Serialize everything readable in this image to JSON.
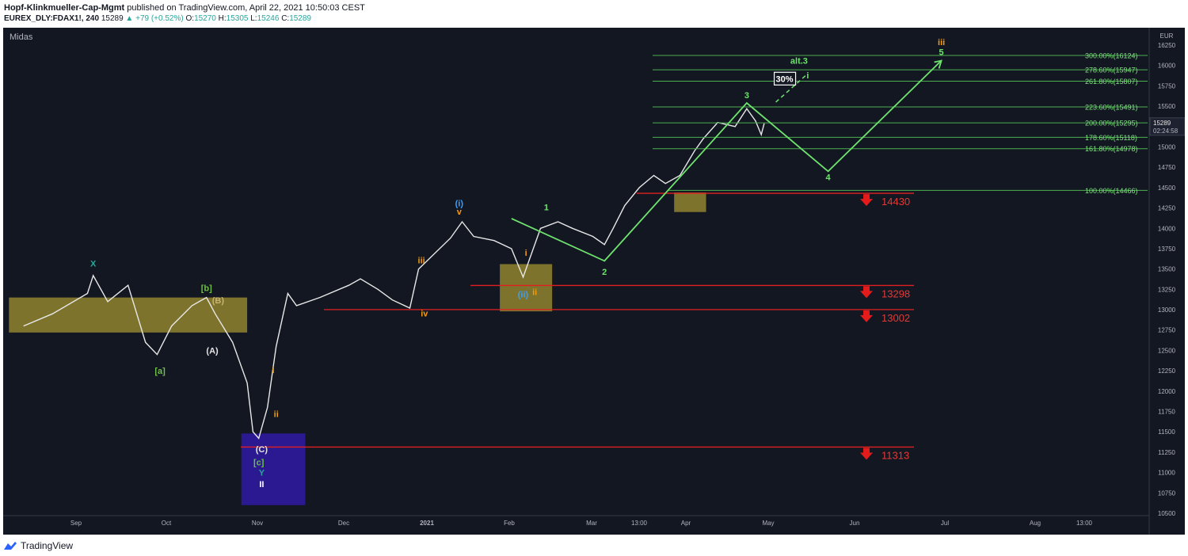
{
  "header": {
    "author": "Hopf-Klinkmueller-Cap-Mgmt",
    "published": "published on TradingView.com, April 22, 2021 10:50:03 CEST",
    "symbol": "EUREX_DLY:FDAX1!, 240",
    "last": "15289",
    "change": "+79 (+0.52%)",
    "o_label": "O:",
    "o_value": "15270",
    "h_label": "H:",
    "h_value": "15305",
    "l_label": "L:",
    "l_value": "15246",
    "c_label": "C:",
    "c_value": "15289"
  },
  "footer": {
    "brand": "TradingView"
  },
  "chart_data": {
    "type": "line",
    "indicator_label": "Midas",
    "currency": "EUR",
    "y_range": [
      10500,
      16250
    ],
    "y_ticks": [
      "16250",
      "16000",
      "15750",
      "15500",
      "15250",
      "15000",
      "14750",
      "14500",
      "14250",
      "14000",
      "13750",
      "13500",
      "13250",
      "13000",
      "12750",
      "12500",
      "12250",
      "12000",
      "11750",
      "11500",
      "11250",
      "11000",
      "10750",
      "10500"
    ],
    "x_ticks": [
      "Sep",
      "Oct",
      "Nov",
      "Dec",
      "2021",
      "Feb",
      "Mar",
      "13:00",
      "Apr",
      "May",
      "Jun",
      "Jul",
      "Aug",
      "13:00"
    ],
    "price_tag": {
      "value": "15289",
      "countdown": "02:24:58"
    },
    "series_price": [
      [
        "2020-08-10",
        12800
      ],
      [
        "2020-08-20",
        12950
      ],
      [
        "2020-09-01",
        13200
      ],
      [
        "2020-09-03",
        13420
      ],
      [
        "2020-09-08",
        13100
      ],
      [
        "2020-09-15",
        13300
      ],
      [
        "2020-09-21",
        12600
      ],
      [
        "2020-09-25",
        12450
      ],
      [
        "2020-09-30",
        12800
      ],
      [
        "2020-10-07",
        13050
      ],
      [
        "2020-10-12",
        13150
      ],
      [
        "2020-10-15",
        12950
      ],
      [
        "2020-10-21",
        12600
      ],
      [
        "2020-10-26",
        12100
      ],
      [
        "2020-10-28",
        11500
      ],
      [
        "2020-10-30",
        11420
      ],
      [
        "2020-11-02",
        11800
      ],
      [
        "2020-11-05",
        12550
      ],
      [
        "2020-11-09",
        13200
      ],
      [
        "2020-11-12",
        13050
      ],
      [
        "2020-11-20",
        13150
      ],
      [
        "2020-11-30",
        13300
      ],
      [
        "2020-12-04",
        13380
      ],
      [
        "2020-12-10",
        13250
      ],
      [
        "2020-12-15",
        13120
      ],
      [
        "2020-12-21",
        13020
      ],
      [
        "2020-12-24",
        13500
      ],
      [
        "2021-01-04",
        13880
      ],
      [
        "2021-01-08",
        14080
      ],
      [
        "2021-01-12",
        13900
      ],
      [
        "2021-01-19",
        13850
      ],
      [
        "2021-01-25",
        13750
      ],
      [
        "2021-01-29",
        13400
      ],
      [
        "2021-02-04",
        14000
      ],
      [
        "2021-02-10",
        14080
      ],
      [
        "2021-02-15",
        14000
      ],
      [
        "2021-02-22",
        13900
      ],
      [
        "2021-02-26",
        13800
      ],
      [
        "2021-03-01",
        14000
      ],
      [
        "2021-03-05",
        14280
      ],
      [
        "2021-03-10",
        14500
      ],
      [
        "2021-03-15",
        14650
      ],
      [
        "2021-03-19",
        14550
      ],
      [
        "2021-03-24",
        14650
      ],
      [
        "2021-03-29",
        14950
      ],
      [
        "2021-04-01",
        15100
      ],
      [
        "2021-04-06",
        15300
      ],
      [
        "2021-04-12",
        15250
      ],
      [
        "2021-04-16",
        15470
      ],
      [
        "2021-04-19",
        15320
      ],
      [
        "2021-04-21",
        15150
      ],
      [
        "2021-04-22",
        15289
      ]
    ],
    "series_projection": [
      [
        "2021-01-25",
        14120
      ],
      [
        "2021-02-26",
        13600
      ],
      [
        "2021-04-16",
        15540
      ],
      [
        "2021-05-14",
        14700
      ],
      [
        "2021-06-22",
        16060
      ]
    ],
    "series_alt_projection": [
      [
        "2021-04-26",
        15550
      ],
      [
        "2021-05-07",
        15900
      ]
    ],
    "fib_levels": [
      {
        "label": "300.00%(16124)",
        "value": 16124
      },
      {
        "label": "278.60%(15947)",
        "value": 15947
      },
      {
        "label": "261.80%(15807)",
        "value": 15807
      },
      {
        "label": "223.60%(15491)",
        "value": 15491
      },
      {
        "label": "200.00%(15295)",
        "value": 15295
      },
      {
        "label": "178.60%(15118)",
        "value": 15118
      },
      {
        "label": "161.80%(14978)",
        "value": 14978
      },
      {
        "label": "100.00%(14466)",
        "value": 14466
      }
    ],
    "support_levels": [
      {
        "label": "14430",
        "value": 14430
      },
      {
        "label": "13298",
        "value": 13298
      },
      {
        "label": "13002",
        "value": 13002
      },
      {
        "label": "11313",
        "value": 11313
      }
    ],
    "zones": [
      {
        "color": "#8a7d2e",
        "x0": "2020-08-05",
        "x1": "2020-10-26",
        "y0": 12720,
        "y1": 13150
      },
      {
        "color": "#8a7d2e",
        "x0": "2021-01-21",
        "x1": "2021-02-08",
        "y0": 12980,
        "y1": 13560
      },
      {
        "color": "#8a7d2e",
        "x0": "2021-03-22",
        "x1": "2021-04-02",
        "y0": 14200,
        "y1": 14440
      },
      {
        "color": "#2e1a9c",
        "x0": "2020-10-24",
        "x1": "2020-11-15",
        "y0": 10600,
        "y1": 11480
      }
    ],
    "wave_labels": [
      {
        "text": "X",
        "color": "#26a69a",
        "x": "2020-09-03",
        "y": 13530
      },
      {
        "text": "[b]",
        "color": "#6fbf4a",
        "x": "2020-10-12",
        "y": 13230
      },
      {
        "text": "(B)",
        "color": "#c8b46e",
        "x": "2020-10-16",
        "y": 13080
      },
      {
        "text": "(A)",
        "color": "#e6e6e6",
        "x": "2020-10-14",
        "y": 12460
      },
      {
        "text": "[a]",
        "color": "#6fbf4a",
        "x": "2020-09-26",
        "y": 12210
      },
      {
        "text": "i",
        "color": "#f39c12",
        "x": "2020-11-04",
        "y": 12220
      },
      {
        "text": "ii",
        "color": "#f39c12",
        "x": "2020-11-05",
        "y": 11680
      },
      {
        "text": "(C)",
        "color": "#e6e6e6",
        "x": "2020-10-31",
        "y": 11250
      },
      {
        "text": "[c]",
        "color": "#6fbf4a",
        "x": "2020-10-30",
        "y": 11090
      },
      {
        "text": "Y",
        "color": "#26a69a",
        "x": "2020-10-31",
        "y": 10960
      },
      {
        "text": "II",
        "color": "#ffffff",
        "x": "2020-10-31",
        "y": 10820
      },
      {
        "text": "iii",
        "color": "#f39c12",
        "x": "2020-12-25",
        "y": 13570
      },
      {
        "text": "iv",
        "color": "#f39c12",
        "x": "2020-12-26",
        "y": 12920
      },
      {
        "text": "(i)",
        "color": "#3aa0ff",
        "x": "2021-01-07",
        "y": 14270
      },
      {
        "text": "v",
        "color": "#f39c12",
        "x": "2021-01-07",
        "y": 14170
      },
      {
        "text": "i",
        "color": "#f39c12",
        "x": "2021-01-30",
        "y": 13660
      },
      {
        "text": "(ii)",
        "color": "#3aa0ff",
        "x": "2021-01-29",
        "y": 13150
      },
      {
        "text": "ii",
        "color": "#f39c12",
        "x": "2021-02-02",
        "y": 13180
      },
      {
        "text": "1",
        "color": "#6ee36e",
        "x": "2021-02-06",
        "y": 14220
      },
      {
        "text": "2",
        "color": "#6ee36e",
        "x": "2021-02-26",
        "y": 13430
      },
      {
        "text": "3",
        "color": "#6ee36e",
        "x": "2021-04-16",
        "y": 15600
      },
      {
        "text": "4",
        "color": "#6ee36e",
        "x": "2021-05-14",
        "y": 14590
      },
      {
        "text": "5",
        "color": "#6ee36e",
        "x": "2021-06-22",
        "y": 16130
      },
      {
        "text": "iii",
        "color": "#f39c12",
        "x": "2021-06-22",
        "y": 16250
      },
      {
        "text": "alt.3",
        "color": "#6ee36e",
        "x": "2021-05-04",
        "y": 16020
      },
      {
        "text": "i",
        "color": "#6ee36e",
        "x": "2021-05-07",
        "y": 15840
      }
    ],
    "annotation_box": {
      "text": "30%",
      "x": "2021-04-29",
      "y": 15790
    }
  }
}
